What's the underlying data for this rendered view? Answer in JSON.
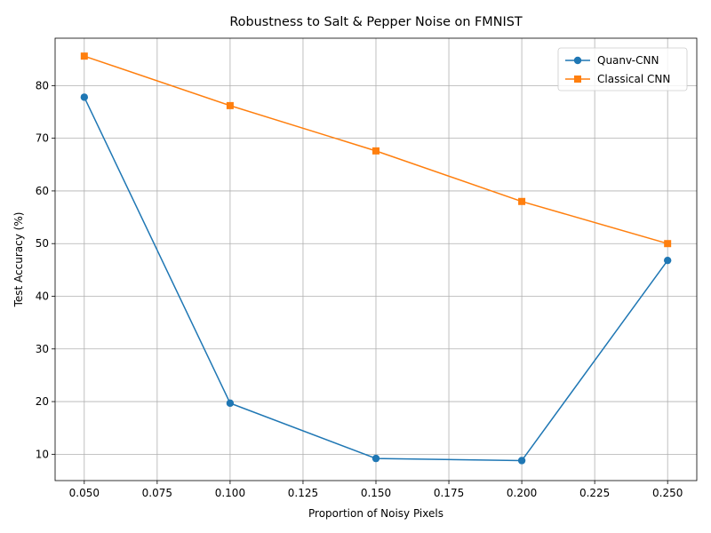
{
  "chart_data": {
    "type": "line",
    "title": "Robustness to Salt & Pepper Noise on FMNIST",
    "xlabel": "Proportion of Noisy Pixels",
    "ylabel": "Test Accuracy (%)",
    "xlim": [
      0.04,
      0.26
    ],
    "ylim": [
      5,
      89
    ],
    "x": [
      0.05,
      0.1,
      0.15,
      0.2,
      0.25
    ],
    "xticks": [
      0.05,
      0.075,
      0.1,
      0.125,
      0.15,
      0.175,
      0.2,
      0.225,
      0.25
    ],
    "xtick_labels": [
      "0.050",
      "0.075",
      "0.100",
      "0.125",
      "0.150",
      "0.175",
      "0.200",
      "0.225",
      "0.250"
    ],
    "yticks": [
      10,
      20,
      30,
      40,
      50,
      60,
      70,
      80
    ],
    "ytick_labels": [
      "10",
      "20",
      "30",
      "40",
      "50",
      "60",
      "70",
      "80"
    ],
    "grid": true,
    "legend_position": "top-right",
    "series": [
      {
        "name": "Quanv-CNN",
        "values": [
          77.8,
          19.7,
          9.2,
          8.8,
          46.8
        ],
        "color": "#1f77b4",
        "marker": "circle"
      },
      {
        "name": "Classical CNN",
        "values": [
          85.6,
          76.2,
          67.6,
          58.0,
          50.0
        ],
        "color": "#ff7f0e",
        "marker": "square"
      }
    ]
  }
}
